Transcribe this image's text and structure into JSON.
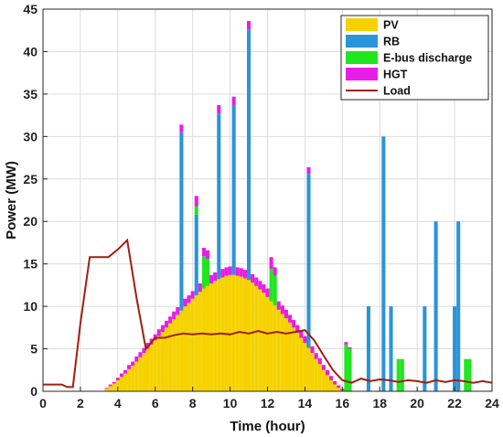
{
  "chart_data": {
    "type": "bar",
    "stacked": true,
    "xlabel": "Time (hour)",
    "ylabel": "Power (MW)",
    "xlim": [
      0,
      24
    ],
    "ylim": [
      0,
      45
    ],
    "xticks": [
      0,
      2,
      4,
      6,
      8,
      10,
      12,
      14,
      16,
      18,
      20,
      22,
      24
    ],
    "yticks": [
      0,
      5,
      10,
      15,
      20,
      25,
      30,
      35,
      40,
      45
    ],
    "grid": true,
    "legend_position": "top-right",
    "bar_width_hours": 0.2,
    "colors": {
      "PV": "#f5d200",
      "RB": "#2a95d8",
      "E-bus discharge": "#1fe61f",
      "HGT": "#e81ee8",
      "Load": "#a01f10"
    },
    "legend": [
      "PV",
      "RB",
      "E-bus discharge",
      "HGT",
      "Load"
    ],
    "x": [
      3.4,
      3.6,
      3.8,
      4.0,
      4.2,
      4.4,
      4.6,
      4.8,
      5.0,
      5.2,
      5.4,
      5.6,
      5.8,
      6.0,
      6.2,
      6.4,
      6.6,
      6.8,
      7.0,
      7.2,
      7.4,
      7.6,
      7.8,
      8.0,
      8.2,
      8.4,
      8.6,
      8.8,
      9.0,
      9.2,
      9.4,
      9.6,
      9.8,
      10.0,
      10.2,
      10.4,
      10.6,
      10.8,
      11.0,
      11.2,
      11.4,
      11.6,
      11.8,
      12.0,
      12.2,
      12.4,
      12.6,
      12.8,
      13.0,
      13.2,
      13.4,
      13.6,
      13.8,
      14.0,
      14.2,
      14.4,
      14.6,
      14.8,
      15.0,
      15.2,
      15.4,
      15.6,
      15.8,
      16.0,
      16.2,
      16.4,
      16.6,
      16.8,
      17.0,
      17.2,
      17.4,
      17.6,
      17.8,
      18.0,
      18.2,
      18.4,
      18.6,
      18.8,
      19.0,
      19.2,
      19.4,
      19.6,
      19.8,
      20.0,
      20.2,
      20.4,
      20.6,
      20.8,
      21.0,
      21.2,
      21.4,
      21.6,
      21.8,
      22.0,
      22.2,
      22.4,
      22.6,
      22.8,
      23.0,
      23.2,
      23.4,
      23.6,
      23.8,
      24.0
    ],
    "series": [
      {
        "name": "PV",
        "values": [
          0.3,
          0.6,
          0.9,
          1.3,
          1.7,
          2.1,
          2.6,
          3.0,
          3.5,
          4.0,
          4.5,
          5.0,
          5.5,
          6.0,
          6.5,
          7.0,
          7.5,
          8.0,
          8.5,
          9.0,
          9.5,
          10.0,
          10.4,
          10.9,
          11.3,
          11.7,
          12.1,
          12.4,
          12.7,
          13.0,
          13.2,
          13.4,
          13.6,
          13.7,
          13.7,
          13.6,
          13.5,
          13.3,
          13.1,
          12.8,
          12.4,
          12.0,
          11.6,
          11.1,
          10.6,
          10.1,
          9.6,
          9.1,
          8.6,
          8.1,
          7.5,
          6.9,
          6.3,
          5.7,
          5.1,
          4.5,
          3.8,
          3.2,
          2.5,
          1.9,
          1.3,
          0.8,
          0.4,
          0.1,
          0,
          0,
          0,
          0,
          0,
          0,
          0,
          0,
          0,
          0,
          0,
          0,
          0,
          0,
          0,
          0,
          0,
          0,
          0,
          0,
          0,
          0,
          0,
          0,
          0,
          0,
          0,
          0,
          0,
          0,
          0,
          0,
          0,
          0,
          0,
          0,
          0,
          0,
          0,
          0
        ]
      },
      {
        "name": "RB",
        "values": [
          0,
          0,
          0,
          0,
          0,
          0,
          0,
          0,
          0,
          0,
          0,
          0,
          0,
          0,
          0,
          0,
          0,
          0,
          0,
          0,
          21.0,
          0,
          0,
          0,
          9.5,
          0,
          0,
          0,
          0,
          0,
          19.5,
          0,
          0,
          0,
          20.0,
          0,
          0,
          0,
          29.5,
          0,
          0,
          0,
          0,
          0,
          0,
          0,
          0,
          0,
          0,
          0,
          0,
          0,
          0,
          0,
          20.5,
          0,
          0,
          0,
          0,
          0,
          0,
          0,
          0,
          0,
          0,
          0,
          0,
          0,
          0,
          0,
          10.0,
          0,
          0,
          0,
          30.0,
          0,
          10.0,
          0,
          0,
          0,
          0,
          0,
          0,
          0,
          0,
          10.0,
          0,
          0,
          20.0,
          0,
          0,
          0,
          0,
          10.0,
          20.0,
          0,
          0,
          0,
          0,
          0,
          0,
          0,
          0,
          0
        ]
      },
      {
        "name": "E-bus discharge",
        "values": [
          0,
          0,
          0,
          0,
          0,
          0,
          0,
          0,
          0,
          0,
          0,
          0,
          0,
          0,
          0,
          0,
          0,
          0,
          0,
          0,
          0,
          0,
          0,
          0,
          1.0,
          0,
          3.8,
          3.2,
          0,
          0,
          0,
          0,
          0,
          0,
          0,
          0,
          0,
          0,
          0,
          0,
          0,
          0,
          0,
          0,
          3.8,
          3.5,
          0,
          0,
          0,
          0,
          0,
          0,
          0,
          0,
          0,
          0,
          0,
          0,
          0,
          0,
          0,
          0,
          0,
          0,
          5.5,
          5.0,
          0,
          0,
          0,
          0,
          0,
          0,
          0,
          0,
          0,
          0,
          0,
          0,
          3.8,
          3.8,
          0,
          0,
          0,
          0,
          0,
          0,
          0,
          0,
          0,
          0,
          0,
          0,
          0,
          0,
          0,
          0,
          3.8,
          3.8,
          0,
          0,
          0,
          0,
          0,
          0
        ]
      },
      {
        "name": "HGT",
        "values": [
          0.1,
          0.2,
          0.2,
          0.3,
          0.4,
          0.4,
          0.5,
          0.5,
          0.6,
          0.6,
          0.6,
          0.7,
          0.7,
          0.7,
          0.8,
          0.8,
          0.8,
          0.8,
          0.9,
          0.9,
          0.9,
          0.9,
          0.9,
          0.9,
          1.2,
          1.0,
          1.0,
          1.0,
          1.0,
          1.0,
          1.0,
          1.0,
          1.0,
          1.0,
          1.0,
          1.0,
          1.0,
          1.0,
          1.0,
          1.0,
          1.0,
          1.0,
          1.0,
          1.0,
          1.4,
          1.0,
          1.0,
          1.0,
          1.0,
          0.9,
          0.9,
          0.9,
          0.9,
          0.8,
          0.8,
          0.8,
          0.7,
          0.7,
          0.6,
          0.6,
          0.5,
          0.4,
          0.3,
          0.2,
          0.3,
          0.2,
          0,
          0,
          0,
          0,
          0,
          0,
          0,
          0,
          0,
          0,
          0,
          0,
          0,
          0,
          0,
          0,
          0,
          0,
          0,
          0,
          0,
          0,
          0,
          0,
          0,
          0,
          0,
          0,
          0,
          0,
          0,
          0,
          0,
          0,
          0,
          0,
          0,
          0
        ]
      }
    ],
    "load": {
      "name": "Load",
      "x": [
        0,
        0.5,
        1.0,
        1.3,
        1.6,
        2.0,
        2.5,
        3.0,
        3.5,
        4.0,
        4.5,
        5.0,
        5.5,
        6.0,
        6.5,
        7.0,
        7.5,
        8.0,
        8.5,
        9.0,
        9.5,
        10.0,
        10.5,
        11.0,
        11.5,
        12.0,
        12.5,
        13.0,
        13.5,
        14.0,
        14.5,
        15.0,
        15.5,
        16.0,
        16.5,
        17.0,
        17.5,
        18.0,
        18.5,
        19.0,
        19.5,
        20.0,
        20.5,
        21.0,
        21.5,
        22.0,
        22.5,
        23.0,
        23.5,
        24.0
      ],
      "y": [
        0.8,
        0.8,
        0.8,
        0.5,
        0.5,
        8.0,
        15.8,
        15.8,
        15.8,
        16.7,
        17.8,
        11.0,
        5.0,
        6.3,
        6.3,
        6.6,
        6.8,
        6.7,
        6.8,
        6.7,
        6.8,
        6.7,
        7.0,
        6.8,
        7.1,
        6.8,
        7.0,
        6.8,
        7.0,
        7.2,
        6.0,
        4.2,
        2.5,
        1.3,
        1.0,
        1.5,
        1.2,
        1.4,
        1.3,
        1.1,
        1.3,
        1.2,
        1.0,
        1.3,
        1.1,
        1.3,
        1.2,
        1.0,
        1.2,
        1.0
      ]
    }
  }
}
